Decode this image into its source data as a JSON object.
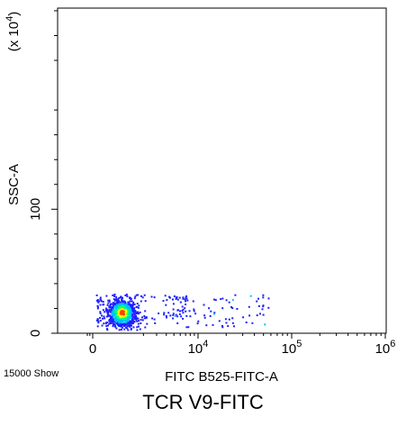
{
  "caption": "TCR V9-FITC",
  "chart_data": {
    "type": "scatter",
    "plot_style": "pseudocolor-density",
    "xlabel": "FITC B525-FITC-A",
    "ylabel": "SSC-A",
    "y_multiplier": "(x 10^4)",
    "y_multiplier_text": {
      "prefix": "(x 10",
      "exp": "4",
      "suffix": ")"
    },
    "x_scale": "biexponential",
    "y_scale": "linear",
    "x_ticks": [
      {
        "label": "0",
        "value": 0
      },
      {
        "label": "10",
        "exp": "4",
        "value": 10000
      },
      {
        "label": "10",
        "exp": "5",
        "value": 100000
      },
      {
        "label": "10",
        "exp": "6",
        "value": 1000000
      }
    ],
    "y_ticks": [
      {
        "label": "0",
        "value": 0
      },
      {
        "label": "100",
        "value": 100
      }
    ],
    "ylim": [
      0,
      262.144
    ],
    "event_count_label": "15000 Show",
    "density_colors": [
      "#2020ff",
      "#00c0ff",
      "#00ff80",
      "#ffff00",
      "#ff4000"
    ],
    "populations": [
      {
        "name": "main",
        "x_center": 900,
        "y_center": 17,
        "y_range": [
          3,
          32
        ]
      },
      {
        "name": "positive-tail",
        "x_range": [
          5000,
          60000
        ],
        "y_range": [
          5,
          32
        ]
      }
    ]
  }
}
